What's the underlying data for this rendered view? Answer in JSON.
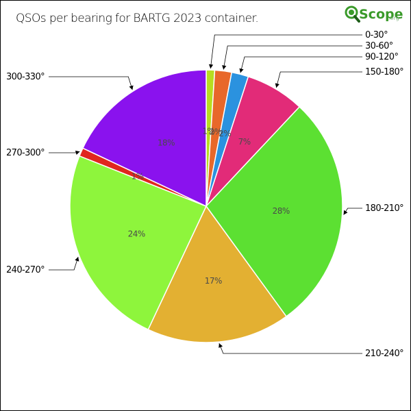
{
  "logo": {
    "text": "Scope",
    "suffix": ".org",
    "icon": "magnifier-q-icon",
    "color": "#3a9a2a"
  },
  "chart_data": {
    "type": "pie",
    "title": "QSOs per bearing for BARTG 2023 container.",
    "start_angle_deg": 0,
    "direction": "clockwise",
    "slices": [
      {
        "label": "0-30°",
        "value": 1,
        "pct_label": "1%",
        "color": "#b7dd20"
      },
      {
        "label": "30-60°",
        "value": 2,
        "pct_label": "2%",
        "color": "#e8682a"
      },
      {
        "label": "90-120°",
        "value": 2,
        "pct_label": "2%",
        "color": "#2b92df"
      },
      {
        "label": "150-180°",
        "value": 7,
        "pct_label": "7%",
        "color": "#e22b78"
      },
      {
        "label": "180-210°",
        "value": 28,
        "pct_label": "28%",
        "color": "#5ce032"
      },
      {
        "label": "210-240°",
        "value": 17,
        "pct_label": "17%",
        "color": "#e3b032"
      },
      {
        "label": "240-270°",
        "value": 24,
        "pct_label": "24%",
        "color": "#8ef53c"
      },
      {
        "label": "270-300°",
        "value": 1,
        "pct_label": "1%",
        "color": "#e0261e"
      },
      {
        "label": "300-330°",
        "value": 18,
        "pct_label": "18%",
        "color": "#8a12ee"
      }
    ]
  }
}
